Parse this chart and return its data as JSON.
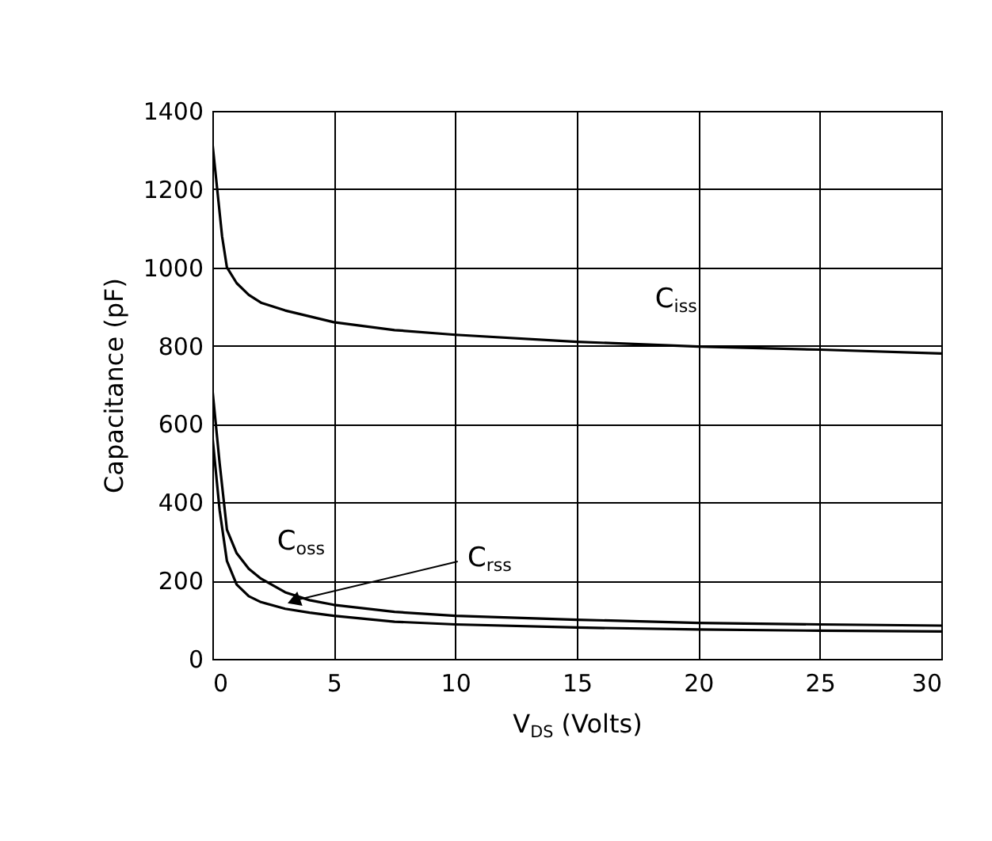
{
  "chart_data": {
    "type": "line",
    "xlabel": "V$_{DS}$ (Volts)",
    "ylabel": "Capacitance (pF)",
    "xlim": [
      0,
      30
    ],
    "xticks": [
      0,
      5,
      10,
      15,
      20,
      25,
      30
    ],
    "ylim": [
      0,
      1400
    ],
    "yticks": [
      0,
      200,
      400,
      600,
      800,
      1000,
      1200,
      1400
    ],
    "grid": true,
    "marker": "none",
    "line_style": "solid",
    "series": [
      {
        "name": "C$_{iss}$",
        "color": "#000000",
        "x": [
          0,
          0.2,
          0.4,
          0.6,
          1,
          1.5,
          2,
          3,
          5,
          7.5,
          10,
          15,
          20,
          25,
          30
        ],
        "values": [
          1320,
          1200,
          1080,
          1000,
          960,
          930,
          910,
          890,
          860,
          840,
          828,
          810,
          798,
          790,
          780
        ]
      },
      {
        "name": "C$_{oss}$",
        "color": "#000000",
        "x": [
          0,
          0.3,
          0.6,
          1,
          1.5,
          2,
          3,
          4,
          5,
          7.5,
          10,
          15,
          20,
          25,
          30
        ],
        "values": [
          690,
          500,
          330,
          270,
          230,
          205,
          170,
          150,
          138,
          120,
          110,
          100,
          92,
          88,
          85
        ]
      },
      {
        "color": "#000000",
        "x": [
          0,
          0.3,
          0.6,
          1,
          1.5,
          2,
          3,
          4,
          5,
          7.5,
          10,
          15,
          20,
          25,
          30
        ],
        "values": [
          570,
          380,
          250,
          190,
          160,
          145,
          128,
          118,
          110,
          95,
          88,
          80,
          75,
          72,
          70
        ]
      }
    ],
    "annotations": [
      {
        "text": "C$_{rss}$",
        "x": 2.9,
        "y": 142
      }
    ]
  }
}
